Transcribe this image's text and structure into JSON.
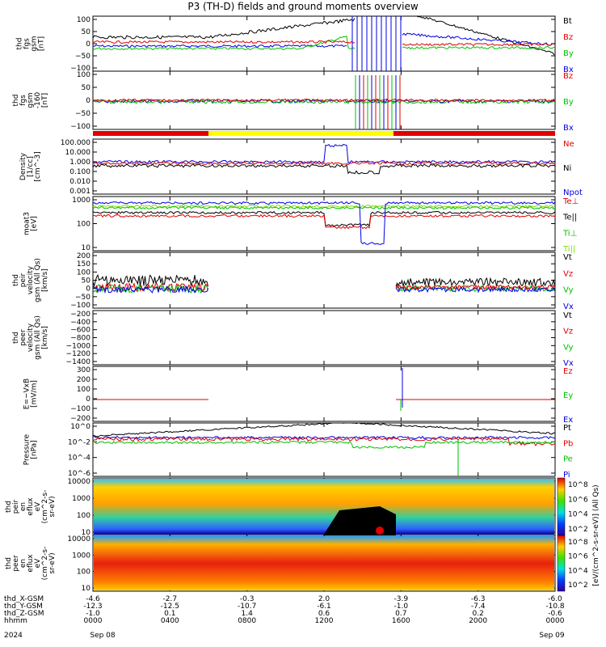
{
  "title": "P3 (TH-D) fields and ground moments overview",
  "chart_data": {
    "type": "line",
    "x_range": [
      "Sep 08 0000",
      "Sep 09 0000"
    ],
    "x_tick_labels": [
      "0000",
      "0400",
      "0800",
      "1200",
      "1600",
      "2000",
      "0000"
    ],
    "x_date_labels": [
      "Sep 08",
      "Sep 09"
    ],
    "year_label": "2024",
    "position_rows": [
      {
        "label": "thd_X-GSM",
        "values": [
          "-4.6",
          "-2.7",
          "-0.3",
          "2.0",
          "-3.9",
          "-6.3",
          "-6.0"
        ]
      },
      {
        "label": "thd_Y-GSM",
        "values": [
          "-12.3",
          "-12.5",
          "-10.7",
          "-6.1",
          "-1.0",
          "-7.4",
          "-10.8"
        ]
      },
      {
        "label": "thd_Z-GSM",
        "values": [
          "-1.0",
          "0.1",
          "1.4",
          "0.6",
          "0.7",
          "0.2",
          "-0.6"
        ]
      },
      {
        "label": "hhmm",
        "values": [
          "0000",
          "0400",
          "0800",
          "1200",
          "1600",
          "2000",
          "0000"
        ]
      }
    ],
    "panels": [
      {
        "ylabel": [
          "thd",
          "fgs",
          "gsm",
          "[nT]"
        ],
        "yticks": [
          "100",
          "50",
          "0",
          "−50",
          "−100"
        ],
        "ylim": [
          -100,
          100
        ],
        "legend": [
          {
            "name": "Bt",
            "color": "#000000"
          },
          {
            "name": "Bz",
            "color": "#e00000"
          },
          {
            "name": "By",
            "color": "#00c000"
          },
          {
            "name": "Bx",
            "color": "#0000e0"
          }
        ]
      },
      {
        "ylabel": [
          "thd",
          "fgs",
          "gsm",
          "-160",
          "[nT]"
        ],
        "yticks": [
          "100",
          "50",
          "0",
          "−50",
          "−100"
        ],
        "ylim": [
          -120,
          100
        ],
        "legend": [
          {
            "name": "Bz",
            "color": "#e00000"
          },
          {
            "name": "By",
            "color": "#00c000"
          },
          {
            "name": "Bx",
            "color": "#0000e0"
          }
        ]
      },
      {
        "ylabel": [
          "Density",
          "[1/cc]",
          "[cm^-3]"
        ],
        "yticks": [
          "100.000",
          "10.000",
          "1.000",
          "0.100",
          "0.010",
          "0.001"
        ],
        "scale": "log",
        "legend": [
          {
            "name": "Ne",
            "color": "#e00000"
          },
          {
            "name": "Ni",
            "color": "#000000"
          },
          {
            "name": "Npot",
            "color": "#0000e0"
          }
        ]
      },
      {
        "ylabel": [
          "moat3",
          "[eV]"
        ],
        "yticks": [
          "1000",
          "100",
          "10"
        ],
        "scale": "log",
        "legend": [
          {
            "name": "Te⊥",
            "color": "#e00000"
          },
          {
            "name": "Te||",
            "color": "#000000"
          },
          {
            "name": "Ti⊥",
            "color": "#00c000"
          },
          {
            "name": "Ti||",
            "color": "#80e000"
          }
        ]
      },
      {
        "ylabel": [
          "thd",
          "peir",
          "velocity",
          "gsm (All Qs)",
          "[km/s]"
        ],
        "yticks": [
          "200",
          "150",
          "100",
          "50",
          "0",
          "−50",
          "−100"
        ],
        "ylim": [
          -100,
          200
        ],
        "legend": [
          {
            "name": "Vt",
            "color": "#000000"
          },
          {
            "name": "Vz",
            "color": "#e00000"
          },
          {
            "name": "Vy",
            "color": "#00c000"
          },
          {
            "name": "Vx",
            "color": "#0000e0"
          }
        ]
      },
      {
        "ylabel": [
          "thd",
          "peer",
          "velocity",
          "gsm (All Qs)",
          "[km/s]"
        ],
        "yticks": [
          "−200",
          "−400",
          "−600",
          "−800",
          "−1000",
          "−1200",
          "−1400"
        ],
        "ylim": [
          -1400,
          -200
        ],
        "legend": [
          {
            "name": "Vt",
            "color": "#000000"
          },
          {
            "name": "Vz",
            "color": "#e00000"
          },
          {
            "name": "Vy",
            "color": "#00c000"
          },
          {
            "name": "Vx",
            "color": "#0000e0"
          }
        ]
      },
      {
        "ylabel": [
          "E=−VxB",
          "[mV/m]"
        ],
        "yticks": [
          "300",
          "200",
          "100",
          "0",
          "−100",
          "−200"
        ],
        "ylim": [
          -200,
          300
        ],
        "legend": [
          {
            "name": "Ez",
            "color": "#e00000"
          },
          {
            "name": "Ey",
            "color": "#00c000"
          },
          {
            "name": "Ex",
            "color": "#0000e0"
          }
        ]
      },
      {
        "ylabel": [
          "Pressure",
          "[nPa]"
        ],
        "yticks": [
          "10^0",
          "10^-2",
          "10^-4",
          "10^-6"
        ],
        "scale": "log",
        "legend": [
          {
            "name": "Pt",
            "color": "#000000"
          },
          {
            "name": "Pb",
            "color": "#e00000"
          },
          {
            "name": "Pe",
            "color": "#00c000"
          },
          {
            "name": "Pi",
            "color": "#0000e0"
          }
        ]
      },
      {
        "ylabel": [
          "thd",
          "peir",
          "en",
          "eflux",
          "eV",
          "(cm^2-s-",
          "sr-eV)"
        ],
        "yticks": [
          "10000",
          "1000",
          "100",
          "10"
        ],
        "scale": "log",
        "colorbar_ticks": [
          "10^8",
          "10^6",
          "10^4",
          "10^2"
        ],
        "colorbar_label": "[eV/(cm^2-s-sr-eV)] (All Qs)"
      },
      {
        "ylabel": [
          "thd",
          "peer",
          "en",
          "eflux",
          "eV",
          "(cm^2-s-",
          "sr-eV)"
        ],
        "yticks": [
          "10000",
          "1000",
          "100",
          "10"
        ],
        "scale": "log",
        "colorbar_ticks": [
          "10^8",
          "10^6",
          "10^4",
          "10^2"
        ],
        "colorbar_label": "[eV/(cm^2-s-sr-eV)] (All Qs)"
      }
    ]
  }
}
